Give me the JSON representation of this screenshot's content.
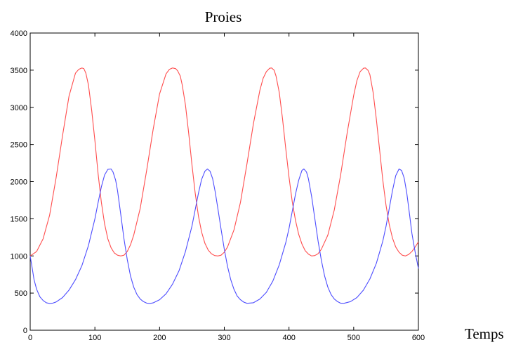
{
  "chart_data": {
    "type": "line",
    "title": "Proies",
    "xlabel": "Temps",
    "ylabel": "",
    "xlim": [
      0,
      600
    ],
    "ylim": [
      0,
      4000
    ],
    "x_ticks": [
      "0",
      "100",
      "200",
      "300",
      "400",
      "500",
      "600"
    ],
    "y_ticks": [
      "0",
      "500",
      "1000",
      "1500",
      "2000",
      "2500",
      "3000",
      "3500",
      "4000"
    ],
    "grid": false,
    "legend": "none",
    "series": [
      {
        "color": "#ff4d4d",
        "x": [
          0,
          10,
          20,
          30,
          40,
          50,
          60,
          70,
          75,
          80,
          83,
          86,
          90,
          95,
          100,
          105,
          110,
          115,
          120,
          125,
          130,
          135,
          140,
          145,
          150,
          155,
          160,
          170,
          180,
          190,
          200,
          210,
          215,
          220,
          225,
          228,
          232,
          235,
          240,
          245,
          250,
          255,
          260,
          265,
          270,
          275,
          280,
          285,
          290,
          295,
          300,
          305,
          315,
          325,
          335,
          345,
          355,
          360,
          365,
          370,
          373,
          377,
          380,
          385,
          390,
          395,
          400,
          405,
          410,
          415,
          420,
          425,
          430,
          435,
          440,
          445,
          450,
          460,
          470,
          480,
          490,
          500,
          505,
          510,
          515,
          518,
          522,
          525,
          530,
          535,
          540,
          545,
          550,
          555,
          560,
          565,
          570,
          575,
          580,
          585,
          590,
          595,
          600
        ],
        "y": [
          1000,
          1060,
          1230,
          1550,
          2050,
          2620,
          3150,
          3460,
          3510,
          3530,
          3520,
          3460,
          3300,
          2960,
          2550,
          2100,
          1720,
          1430,
          1230,
          1110,
          1040,
          1010,
          1000,
          1010,
          1060,
          1150,
          1280,
          1640,
          2150,
          2700,
          3180,
          3450,
          3510,
          3530,
          3520,
          3490,
          3420,
          3300,
          3030,
          2650,
          2230,
          1850,
          1540,
          1320,
          1170,
          1080,
          1030,
          1005,
          1000,
          1010,
          1050,
          1120,
          1350,
          1720,
          2240,
          2780,
          3230,
          3390,
          3480,
          3525,
          3530,
          3500,
          3420,
          3200,
          2850,
          2440,
          2060,
          1730,
          1480,
          1290,
          1160,
          1070,
          1025,
          1000,
          1005,
          1030,
          1090,
          1280,
          1620,
          2100,
          2660,
          3160,
          3360,
          3480,
          3525,
          3530,
          3500,
          3440,
          3200,
          2840,
          2430,
          2020,
          1680,
          1420,
          1240,
          1120,
          1050,
          1010,
          1000,
          1020,
          1060,
          1120,
          1190
        ]
      },
      {
        "color": "#4d4dff",
        "x": [
          0,
          3,
          6,
          10,
          15,
          20,
          25,
          30,
          35,
          40,
          50,
          60,
          70,
          80,
          90,
          100,
          105,
          110,
          115,
          120,
          125,
          128,
          132,
          135,
          140,
          145,
          150,
          155,
          160,
          165,
          170,
          175,
          180,
          185,
          190,
          200,
          210,
          220,
          230,
          240,
          250,
          255,
          260,
          265,
          270,
          274,
          278,
          282,
          286,
          290,
          295,
          300,
          305,
          310,
          315,
          320,
          325,
          330,
          335,
          345,
          355,
          365,
          375,
          385,
          395,
          400,
          405,
          410,
          415,
          420,
          423,
          427,
          430,
          435,
          440,
          445,
          450,
          455,
          460,
          465,
          470,
          475,
          480,
          485,
          495,
          505,
          515,
          525,
          535,
          545,
          550,
          555,
          560,
          565,
          570,
          574,
          578,
          582,
          586,
          590,
          595,
          600
        ],
        "y": [
          1000,
          840,
          680,
          550,
          450,
          400,
          370,
          360,
          365,
          380,
          440,
          540,
          680,
          870,
          1140,
          1500,
          1720,
          1930,
          2090,
          2165,
          2170,
          2130,
          2020,
          1880,
          1560,
          1230,
          950,
          730,
          580,
          480,
          420,
          385,
          365,
          360,
          368,
          410,
          490,
          620,
          800,
          1060,
          1400,
          1620,
          1840,
          2030,
          2140,
          2170,
          2140,
          2040,
          1860,
          1640,
          1360,
          1090,
          860,
          680,
          550,
          460,
          410,
          378,
          362,
          370,
          420,
          510,
          660,
          880,
          1180,
          1370,
          1600,
          1830,
          2020,
          2150,
          2170,
          2130,
          2040,
          1800,
          1500,
          1200,
          940,
          730,
          580,
          480,
          420,
          385,
          363,
          362,
          385,
          440,
          540,
          690,
          900,
          1200,
          1400,
          1640,
          1880,
          2080,
          2170,
          2150,
          2050,
          1850,
          1580,
          1300,
          1050,
          830
        ]
      }
    ]
  }
}
